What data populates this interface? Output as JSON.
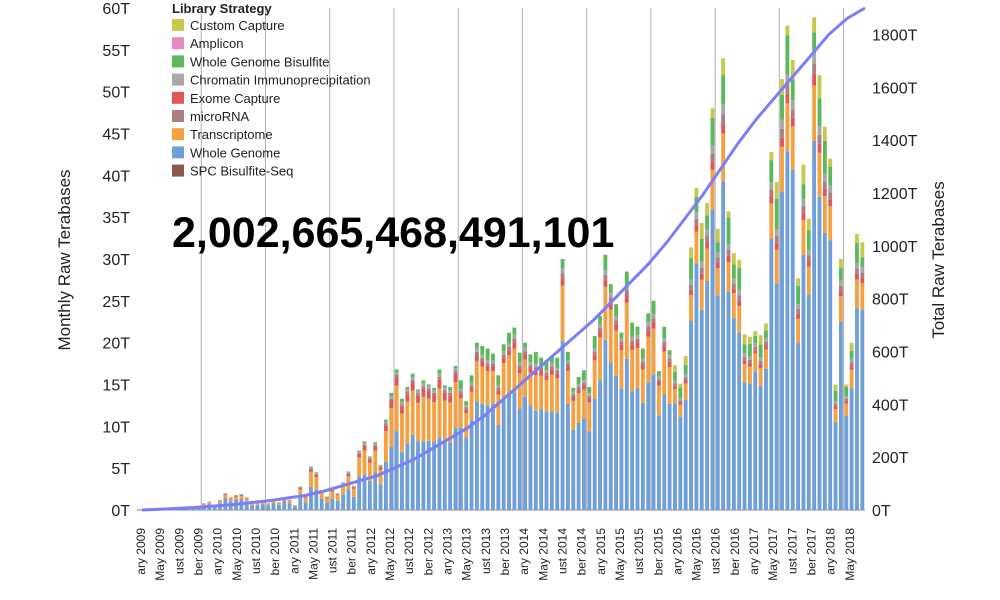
{
  "big_total": "2,002,665,468,491,101",
  "chart_data": {
    "type": "bar",
    "stacked": true,
    "ylabel": "Monthly Raw Terabases",
    "y2label": "Total Raw Terabases",
    "ylim": [
      0,
      60
    ],
    "y2lim": [
      0,
      1900
    ],
    "yticks": [
      "0T",
      "5T",
      "10T",
      "15T",
      "20T",
      "25T",
      "30T",
      "35T",
      "40T",
      "45T",
      "50T",
      "55T",
      "60T"
    ],
    "y2ticks": [
      "0T",
      "200T",
      "400T",
      "600T",
      "800T",
      "1000T",
      "1200T",
      "1400T",
      "1600T",
      "1800T"
    ],
    "date_ticks": [
      "ary 2009",
      "May 2009",
      "ust 2009",
      "ber 2009",
      "ary 2010",
      "May 2010",
      "ust 2010",
      "ber 2010",
      "ary 2011",
      "May 2011",
      "ust 2011",
      "ber 2011",
      "ary 2012",
      "May 2012",
      "ust 2012",
      "ber 2012",
      "ary 2013",
      "May 2013",
      "ust 2013",
      "ber 2013",
      "ary 2014",
      "May 2014",
      "ust 2014",
      "ber 2014",
      "ary 2015",
      "May 2015",
      "ust 2015",
      "ber 2015",
      "ary 2016",
      "May 2016",
      "ust 2016",
      "ber 2016",
      "ary 2017",
      "May 2017",
      "ust 2017",
      "ber 2017",
      "ary 2018",
      "May 2018"
    ],
    "legend": {
      "title": "Library Strategy",
      "placement": "top-left",
      "entries": [
        {
          "name": "Custom Capture",
          "color": "#c8c84a"
        },
        {
          "name": "Amplicon",
          "color": "#e78ac3"
        },
        {
          "name": "Whole Genome Bisulfite",
          "color": "#5cb85c"
        },
        {
          "name": "Chromatin Immunoprecipitation",
          "color": "#a8a8a8"
        },
        {
          "name": "Exome Capture",
          "color": "#e15759"
        },
        {
          "name": "microRNA",
          "color": "#a98080"
        },
        {
          "name": "Transcriptome",
          "color": "#f5a142"
        },
        {
          "name": "Whole Genome",
          "color": "#6f9fd8"
        },
        {
          "name": "SPC Bisulfite-Seq",
          "color": "#8c564b"
        }
      ]
    },
    "line_color": "#7b7ff5",
    "series_order": [
      "Whole Genome",
      "Transcriptome",
      "Exome Capture",
      "microRNA",
      "Chromatin Immunoprecipitation",
      "Whole Genome Bisulfite",
      "Amplicon",
      "Custom Capture"
    ],
    "monthly_totals": [
      0.1,
      0.1,
      0.1,
      0.15,
      0.2,
      0.2,
      0.2,
      0.3,
      0.3,
      0.4,
      0.4,
      0.5,
      0.8,
      1.0,
      0.6,
      1.2,
      2.0,
      1.5,
      1.8,
      1.9,
      1.5,
      0.8,
      0.9,
      1.0,
      0.8,
      1.2,
      0.9,
      1.5,
      1.2,
      0.6,
      2.8,
      1.6,
      5.2,
      4.5,
      2.4,
      1.6,
      2.5,
      2.0,
      3.3,
      4.6,
      2.9,
      7.1,
      8.2,
      6.4,
      8.1,
      5.4,
      10.8,
      14.0,
      16.8,
      13.3,
      14.7,
      16.3,
      14.4,
      15.5,
      15.0,
      14.6,
      16.8,
      14.9,
      14.7,
      17.2,
      15.5,
      13.0,
      16.1,
      20.0,
      19.6,
      19.3,
      18.7,
      16.1,
      19.8,
      21.2,
      21.8,
      18.8,
      20.0,
      18.6,
      18.9,
      18.2,
      17.9,
      18.4,
      18.2,
      30.0,
      18.9,
      14.6,
      15.9,
      16.7,
      14.7,
      20.8,
      23.2,
      30.5,
      27.0,
      24.6,
      21.2,
      28.5,
      22.4,
      21.9,
      19.3,
      23.5,
      25.0,
      16.6,
      21.9,
      19.1,
      17.3,
      15.1,
      18.4,
      31.4,
      38.5,
      34.3,
      36.7,
      48.0,
      33.6,
      54.0,
      35.7,
      30.7,
      29.9,
      21.0,
      20.7,
      21.4,
      20.9,
      22.3,
      42.8,
      39.2,
      51.5,
      57.9,
      53.8,
      27.7,
      41.3,
      34.8,
      58.9,
      52.0,
      45.8,
      42.0,
      15.0,
      30.0,
      15.0,
      20.0,
      33.0,
      32.0
    ],
    "composition": [
      {
        "range": [
          0,
          30
        ],
        "shares": [
          0.7,
          0.18,
          0.06,
          0.02,
          0.02,
          0.02,
          0.0,
          0.0
        ]
      },
      {
        "range": [
          30,
          60
        ],
        "shares": [
          0.55,
          0.33,
          0.06,
          0.02,
          0.02,
          0.02,
          0.0,
          0.0
        ]
      },
      {
        "range": [
          60,
          100
        ],
        "shares": [
          0.66,
          0.22,
          0.03,
          0.02,
          0.02,
          0.05,
          0.0,
          0.0
        ]
      },
      {
        "range": [
          100,
          136
        ],
        "shares": [
          0.74,
          0.1,
          0.02,
          0.02,
          0.02,
          0.06,
          0.0,
          0.04
        ]
      }
    ],
    "cumulative_total_terabases": [
      0,
      3,
      6,
      10,
      15,
      20,
      28,
      35,
      45,
      55,
      70,
      90,
      110,
      130,
      160,
      190,
      230,
      270,
      310,
      360,
      420,
      480,
      540,
      600,
      660,
      720,
      790,
      860,
      930,
      1010,
      1100,
      1190,
      1290,
      1390,
      1480,
      1560,
      1640,
      1720,
      1800,
      1860,
      1900
    ]
  }
}
